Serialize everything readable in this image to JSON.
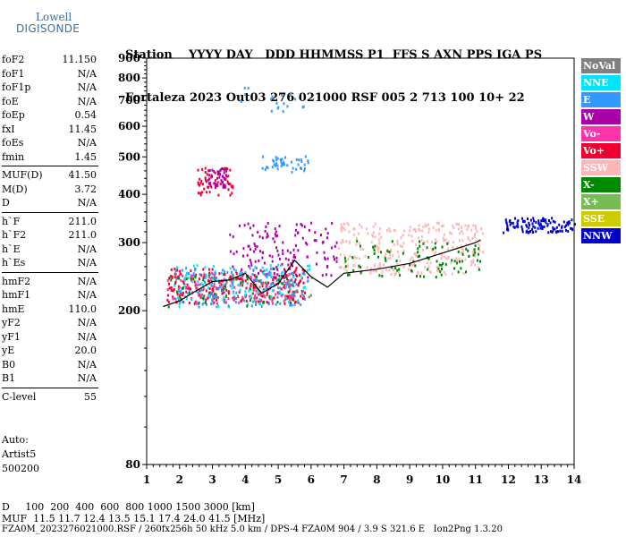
{
  "brand": {
    "line1": "Lowell",
    "line2": "DIGISONDE"
  },
  "header": {
    "line1": "Station    YYYY DAY   DDD HHMMSS P1  FFS S AXN PPS IGA PS",
    "line2": "Fortaleza 2023 Out03 276 021000 RSF 005 2 713 100 10+ 22"
  },
  "params": [
    {
      "name": "foF2",
      "value": "11.150"
    },
    {
      "name": "foF1",
      "value": "N/A"
    },
    {
      "name": "foF1p",
      "value": "N/A"
    },
    {
      "name": "foE",
      "value": "N/A"
    },
    {
      "name": "foEp",
      "value": "0.54"
    },
    {
      "name": "fxI",
      "value": "11.45"
    },
    {
      "name": "foEs",
      "value": "N/A"
    },
    {
      "name": "fmin",
      "value": "1.45"
    },
    {
      "name": "MUF(D)",
      "value": "41.50"
    },
    {
      "name": "M(D)",
      "value": "3.72"
    },
    {
      "name": "D",
      "value": "N/A"
    },
    {
      "name": "h`F",
      "value": "211.0"
    },
    {
      "name": "h`F2",
      "value": "211.0"
    },
    {
      "name": "h`E",
      "value": "N/A"
    },
    {
      "name": "h`Es",
      "value": "N/A"
    },
    {
      "name": "hmF2",
      "value": "N/A"
    },
    {
      "name": "hmF1",
      "value": "N/A"
    },
    {
      "name": "hmE",
      "value": "110.0"
    },
    {
      "name": "yF2",
      "value": "N/A"
    },
    {
      "name": "yF1",
      "value": "N/A"
    },
    {
      "name": "yE",
      "value": "20.0"
    },
    {
      "name": "B0",
      "value": "N/A"
    },
    {
      "name": "B1",
      "value": "N/A"
    },
    {
      "name": "C-level",
      "value": "55"
    }
  ],
  "auto": [
    "Auto:",
    "Artist5",
    "500200"
  ],
  "footer": {
    "dline": "D     100  200  400  600  800 1000 1500 3000 [km]",
    "mufline": "MUF  11.5 11.7 12.4 13.5 15.1 17.4 24.0 41.5 [MHz]",
    "fileline": "FZA0M_2023276021000.RSF / 260fx256h 50 kHz 5.0 km / DPS-4 FZA0M 904 / 3.9 S 321.6 E   Ion2Png 1.3.20"
  },
  "legend": [
    {
      "label": "NoVal",
      "color": "#808080"
    },
    {
      "label": "NNE",
      "color": "#00e5ff"
    },
    {
      "label": "E",
      "color": "#3399ff"
    },
    {
      "label": "W",
      "color": "#aa00aa"
    },
    {
      "label": "Vo-",
      "color": "#ff33aa"
    },
    {
      "label": "Vo+",
      "color": "#ee0033"
    },
    {
      "label": "SSW",
      "color": "#ffb6b6"
    },
    {
      "label": "X-",
      "color": "#008800"
    },
    {
      "label": "X+",
      "color": "#77bb55"
    },
    {
      "label": "SSE",
      "color": "#cccc00"
    },
    {
      "label": "NNW",
      "color": "#0000cc"
    }
  ],
  "chart_data": {
    "type": "scatter",
    "title": "",
    "xlabel": "",
    "ylabel": "",
    "xlim": [
      1,
      14
    ],
    "ylim": [
      80,
      900
    ],
    "x_ticks": [
      1,
      2,
      3,
      4,
      5,
      6,
      7,
      8,
      9,
      10,
      11,
      12,
      13,
      14
    ],
    "y_ticks": [
      80,
      200,
      300,
      400,
      500,
      600,
      700,
      800,
      900
    ],
    "y_scale": "log",
    "trace": {
      "name": "",
      "x": [
        1.5,
        2.0,
        2.5,
        3.0,
        3.5,
        4.0,
        4.5,
        5.0,
        5.5,
        6.0,
        6.5,
        7.0,
        8.0,
        9.0,
        10.0,
        11.0,
        11.15
      ],
      "y": [
        205,
        212,
        225,
        238,
        240,
        250,
        222,
        235,
        270,
        245,
        230,
        250,
        256,
        265,
        282,
        300,
        305
      ]
    },
    "clusters": [
      {
        "series": "Vo+",
        "x": [
          1.6,
          5.8
        ],
        "y": [
          210,
          260
        ],
        "n": 260
      },
      {
        "series": "Vo-",
        "x": [
          1.6,
          5.5
        ],
        "y": [
          210,
          255
        ],
        "n": 120
      },
      {
        "series": "W",
        "x": [
          3.5,
          6.8
        ],
        "y": [
          245,
          340
        ],
        "n": 140
      },
      {
        "series": "SSW",
        "x": [
          6.8,
          11.2
        ],
        "y": [
          250,
          340
        ],
        "n": 280
      },
      {
        "series": "X-",
        "x": [
          7.0,
          11.2
        ],
        "y": [
          245,
          305
        ],
        "n": 90
      },
      {
        "series": "NNE",
        "x": [
          1.8,
          6.0
        ],
        "y": [
          205,
          265
        ],
        "n": 120
      },
      {
        "series": "E",
        "x": [
          1.8,
          6.0
        ],
        "y": [
          205,
          260
        ],
        "n": 110
      },
      {
        "series": "Vo+",
        "x": [
          2.5,
          3.6
        ],
        "y": [
          400,
          475
        ],
        "n": 60
      },
      {
        "series": "E",
        "x": [
          4.5,
          5.9
        ],
        "y": [
          460,
          505
        ],
        "n": 45
      },
      {
        "series": "NNW",
        "x": [
          11.8,
          14.0
        ],
        "y": [
          320,
          350
        ],
        "n": 110
      },
      {
        "series": "W",
        "x": [
          2.8,
          3.4
        ],
        "y": [
          420,
          470
        ],
        "n": 40
      },
      {
        "series": "E",
        "x": [
          3.6,
          6.0
        ],
        "y": [
          660,
          760
        ],
        "n": 18
      },
      {
        "series": "X-",
        "x": [
          1.6,
          5.5
        ],
        "y": [
          205,
          250
        ],
        "n": 50
      },
      {
        "series": "NoVal",
        "x": [
          2.5,
          6.0
        ],
        "y": [
          215,
          250
        ],
        "n": 40
      }
    ]
  }
}
